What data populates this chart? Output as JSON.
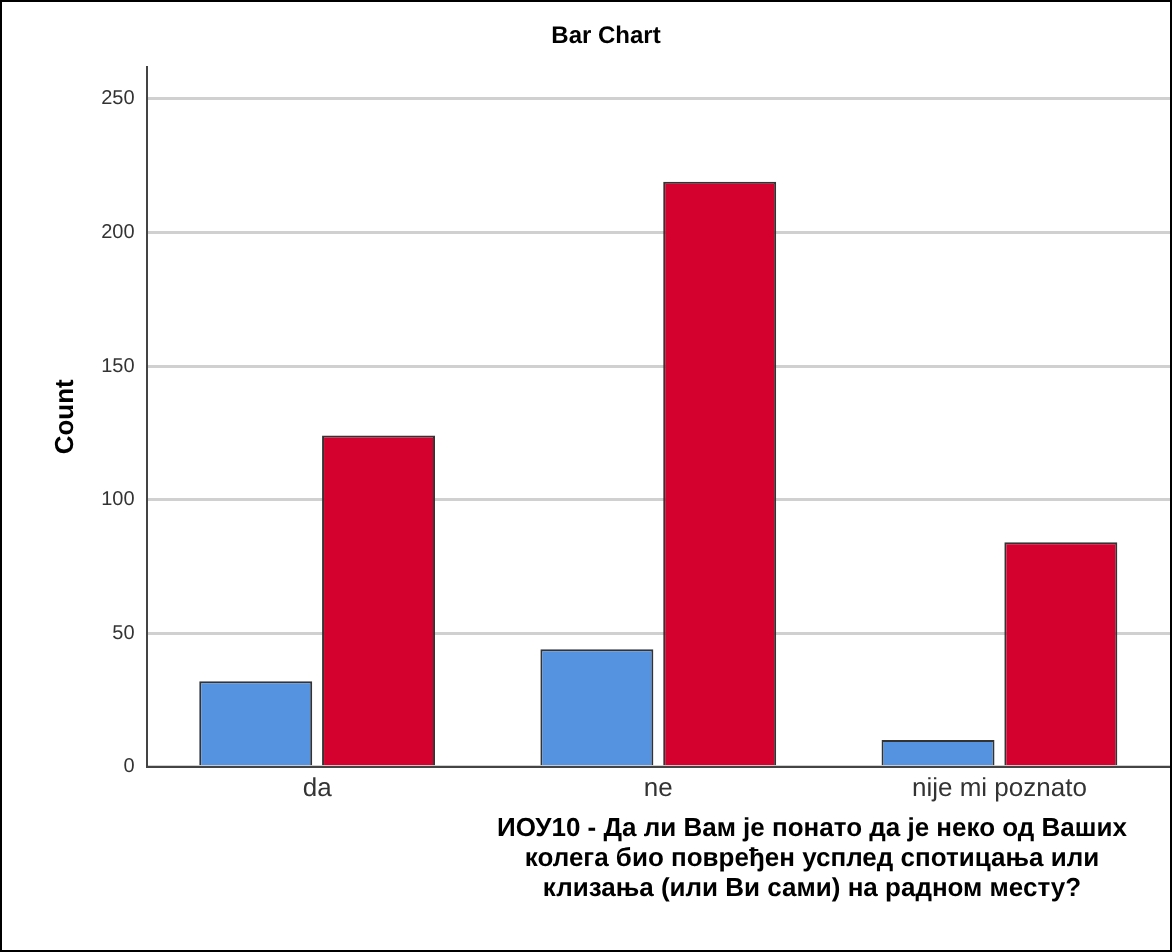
{
  "chart_data": {
    "type": "bar",
    "title": "Bar Chart",
    "categories": [
      "da",
      "ne",
      "nije mi poznato"
    ],
    "series": [
      {
        "color": "#5593e1",
        "values": [
          32,
          44,
          10
        ]
      },
      {
        "color": "#d4002e",
        "values": [
          124,
          219,
          84
        ]
      }
    ],
    "ylabel": "Count",
    "xlabel": "ИОУ10 - Да ли Вам је понато да је неко од Ваших колега био повређен усплед спотицања или клизања (или Ви сами) на радном месту?",
    "ylim": [
      0,
      262
    ],
    "yticks": [
      0,
      50,
      100,
      150,
      200,
      250
    ],
    "grid": "y",
    "legend": false
  }
}
